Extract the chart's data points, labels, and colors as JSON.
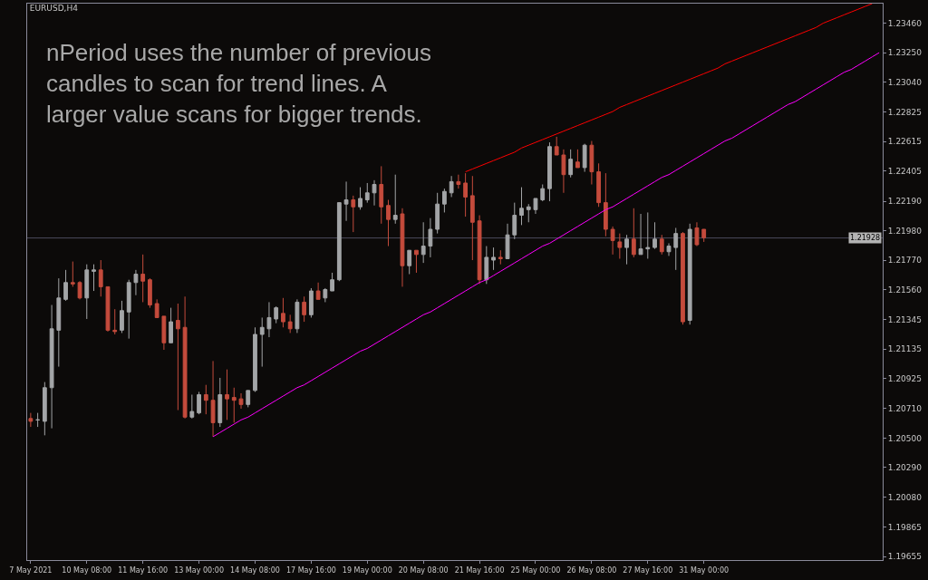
{
  "chart_data": {
    "type": "candlestick",
    "title": "EURUSD,H4",
    "annotations": [
      "nPeriod uses the number of previous\ncandles to scan for trend lines. A\nlarger value scans for bigger trends."
    ],
    "categories": [
      "7 May 2021",
      null,
      null,
      null,
      null,
      null,
      null,
      null,
      "10 May 08:00",
      null,
      null,
      null,
      null,
      null,
      null,
      null,
      "11 May 16:00",
      null,
      null,
      null,
      null,
      null,
      null,
      null,
      "13 May 00:00",
      null,
      null,
      null,
      null,
      null,
      null,
      null,
      "14 May 08:00",
      null,
      null,
      null,
      null,
      null,
      null,
      null,
      "17 May 16:00",
      null,
      null,
      null,
      null,
      null,
      null,
      null,
      "19 May 00:00",
      null,
      null,
      null,
      null,
      null,
      null,
      null,
      "20 May 08:00",
      null,
      null,
      null,
      null,
      null,
      null,
      null,
      "21 May 16:00",
      null,
      null,
      null,
      null,
      null,
      null,
      null,
      "25 May 00:00",
      null,
      null,
      null,
      null,
      null,
      null,
      null,
      "26 May 08:00",
      null,
      null,
      null,
      null,
      null,
      null,
      null,
      "27 May 16:00",
      null,
      null,
      null,
      null,
      null,
      null,
      null,
      "31 May 00:00",
      null,
      null,
      null,
      null,
      null,
      null,
      null,
      null,
      null,
      null,
      null,
      null,
      null,
      null,
      null,
      null,
      null,
      null,
      null,
      null,
      null,
      null,
      null,
      null,
      null
    ],
    "ylim": [
      1.1963,
      1.236
    ],
    "yticks": [
      {
        "value": 1.2346,
        "label": "1.23460"
      },
      {
        "value": 1.2325,
        "label": "1.23250"
      },
      {
        "value": 1.2304,
        "label": "1.23040"
      },
      1.22825,
      1.22615,
      1.22405,
      {
        "value": 1.2219,
        "label": "1.22190"
      },
      {
        "value": 1.2198,
        "label": "1.21980"
      },
      {
        "value": 1.2177,
        "label": "1.21770"
      },
      {
        "value": 1.2156,
        "label": "1.21560"
      },
      1.21345,
      1.21135,
      1.20925,
      {
        "value": 1.2071,
        "label": "1.20710"
      },
      {
        "value": 1.205,
        "label": "1.20500"
      },
      {
        "value": 1.2029,
        "label": "1.20290"
      },
      {
        "value": 1.2008,
        "label": "1.20080"
      },
      1.19865,
      1.19655
    ],
    "series": [
      {
        "colors": [
          "#c44b3c",
          "#a3a5a7",
          "#a3a5a7",
          "#a3a5a7",
          "#a3a5a7",
          "#a3a5a7",
          "#c44b3c",
          "#c44b3c",
          "#a3a5a7",
          "#a3a5a7",
          "#c44b3c",
          "#c44b3c",
          "#c44b3c",
          "#a3a5a7",
          "#a3a5a7",
          "#a3a5a7",
          "#c44b3c",
          "#c44b3c",
          "#c44b3c",
          "#c44b3c",
          "#a3a5a7",
          "#c44b3c",
          "#c44b3c",
          "#a3a5a7",
          "#a3a5a7",
          "#c44b3c",
          "#c44b3c",
          "#a3a5a7",
          "#c44b3c",
          "#c44b3c",
          "#c44b3c",
          "#a3a5a7",
          "#a3a5a7",
          "#a3a5a7",
          "#a3a5a7",
          "#a3a5a7",
          "#c44b3c",
          "#c44b3c",
          "#a3a5a7",
          "#c44b3c",
          "#a3a5a7",
          "#c44b3c",
          "#a3a5a7",
          "#a3a5a7",
          "#a3a5a7",
          "#a3a5a7",
          "#c44b3c",
          "#a3a5a7",
          "#a3a5a7",
          "#a3a5a7",
          "#c44b3c",
          "#c44b3c",
          "#a3a5a7",
          "#c44b3c",
          "#a3a5a7",
          "#c44b3c",
          "#a3a5a7",
          "#a3a5a7",
          "#a3a5a7",
          "#a3a5a7",
          "#a3a5a7",
          "#c44b3c",
          "#c44b3c",
          "#c44b3c",
          "#c44b3c",
          "#a3a5a7",
          "#a3a5a7",
          "#c44b3c",
          "#a3a5a7",
          "#a3a5a7",
          "#a3a5a7",
          "#a3a5a7",
          "#a3a5a7",
          "#a3a5a7",
          "#a3a5a7",
          "#c44b3c",
          "#c44b3c",
          "#a3a5a7",
          "#c44b3c",
          "#a3a5a7",
          "#c44b3c",
          "#c44b3c",
          "#c44b3c",
          "#c44b3c",
          "#c44b3c",
          "#a3a5a7",
          "#c44b3c",
          "#a3a5a7",
          "#a3a5a7",
          "#a3a5a7",
          "#c44b3c",
          "#a3a5a7",
          "#a3a5a7",
          "#c44b3c",
          "#a3a5a7",
          "#c44b3c",
          "#c44b3c",
          null,
          null,
          null,
          null,
          null,
          null,
          null,
          null,
          null,
          null,
          null,
          null,
          null,
          null,
          null,
          null,
          null,
          null,
          null,
          null,
          null,
          null,
          null,
          null,
          null
        ],
        "ohlc": [
          [
            1.2064,
            1.2068,
            1.2058,
            1.2062
          ],
          [
            1.2063,
            1.2068,
            1.2058,
            1.2063
          ],
          [
            1.2062,
            1.209,
            1.2052,
            1.2086
          ],
          [
            1.2086,
            1.2145,
            1.2057,
            1.2128
          ],
          [
            1.2127,
            1.2164,
            1.2101,
            1.215
          ],
          [
            1.2149,
            1.217,
            1.2148,
            1.2161
          ],
          [
            1.2161,
            1.2176,
            1.2158,
            1.216
          ],
          [
            1.2161,
            1.2162,
            1.2149,
            1.215
          ],
          [
            1.215,
            1.2174,
            1.2135,
            1.217
          ],
          [
            1.2169,
            1.2174,
            1.2155,
            1.217
          ],
          [
            1.217,
            1.2177,
            1.2151,
            1.2158
          ],
          [
            1.2158,
            1.2158,
            1.2126,
            1.2127
          ],
          [
            1.2127,
            1.2142,
            1.2124,
            1.2126
          ],
          [
            1.2127,
            1.2148,
            1.2125,
            1.2141
          ],
          [
            1.214,
            1.2163,
            1.2121,
            1.2161
          ],
          [
            1.2161,
            1.217,
            1.2152,
            1.2167
          ],
          [
            1.2167,
            1.2181,
            1.2147,
            1.2162
          ],
          [
            1.2163,
            1.2164,
            1.2143,
            1.2145
          ],
          [
            1.2146,
            1.2149,
            1.2136,
            1.2136
          ],
          [
            1.2137,
            1.2137,
            1.2113,
            1.2118
          ],
          [
            1.2118,
            1.2143,
            1.2118,
            1.2133
          ],
          [
            1.2134,
            1.2146,
            1.207,
            1.2128
          ],
          [
            1.2129,
            1.2151,
            1.2064,
            1.2065
          ],
          [
            1.2065,
            1.2081,
            1.2064,
            1.2069
          ],
          [
            1.2068,
            1.2083,
            1.2067,
            1.2081
          ],
          [
            1.2081,
            1.2088,
            1.2067,
            1.2077
          ],
          [
            1.2077,
            1.2105,
            1.2051,
            1.2061
          ],
          [
            1.2061,
            1.2093,
            1.2058,
            1.2081
          ],
          [
            1.2081,
            1.2099,
            1.2063,
            1.2078
          ],
          [
            1.2079,
            1.2086,
            1.2061,
            1.2077
          ],
          [
            1.2078,
            1.2082,
            1.2071,
            1.2074
          ],
          [
            1.2074,
            1.2084,
            1.2072,
            1.2084
          ],
          [
            1.2084,
            1.2129,
            1.2083,
            1.2124
          ],
          [
            1.2124,
            1.2136,
            1.2101,
            1.2129
          ],
          [
            1.2128,
            1.2147,
            1.2122,
            1.2136
          ],
          [
            1.2135,
            1.2144,
            1.2132,
            1.2143
          ],
          [
            1.2139,
            1.215,
            1.2129,
            1.2133
          ],
          [
            1.2133,
            1.2138,
            1.2125,
            1.2128
          ],
          [
            1.2128,
            1.2149,
            1.2125,
            1.2147
          ],
          [
            1.2147,
            1.2151,
            1.2133,
            1.2138
          ],
          [
            1.2138,
            1.2157,
            1.2136,
            1.2155
          ],
          [
            1.2155,
            1.2161,
            1.2149,
            1.2149
          ],
          [
            1.215,
            1.2157,
            1.2147,
            1.2156
          ],
          [
            1.2155,
            1.2168,
            1.2155,
            1.2163
          ],
          [
            1.2163,
            1.2218,
            1.2162,
            1.2218
          ],
          [
            1.2217,
            1.2233,
            1.2205,
            1.222
          ],
          [
            1.222,
            1.2223,
            1.2197,
            1.2215
          ],
          [
            1.2215,
            1.2229,
            1.2213,
            1.2221
          ],
          [
            1.222,
            1.2232,
            1.2218,
            1.2225
          ],
          [
            1.2225,
            1.2234,
            1.2216,
            1.2231
          ],
          [
            1.2231,
            1.2244,
            1.2203,
            1.2215
          ],
          [
            1.2216,
            1.222,
            1.2187,
            1.2206
          ],
          [
            1.2206,
            1.2238,
            1.2203,
            1.2209
          ],
          [
            1.221,
            1.2214,
            1.2158,
            1.2173
          ],
          [
            1.2173,
            1.2184,
            1.2167,
            1.2184
          ],
          [
            1.2184,
            1.2184,
            1.2168,
            1.2181
          ],
          [
            1.2181,
            1.2204,
            1.2175,
            1.2187
          ],
          [
            1.2187,
            1.2207,
            1.2179,
            1.2199
          ],
          [
            1.2199,
            1.2225,
            1.2196,
            1.2217
          ],
          [
            1.2217,
            1.2228,
            1.2211,
            1.2226
          ],
          [
            1.2225,
            1.2237,
            1.2222,
            1.2233
          ],
          [
            1.2233,
            1.2238,
            1.2228,
            1.2231
          ],
          [
            1.2232,
            1.2239,
            1.2208,
            1.2222
          ],
          [
            1.2223,
            1.2237,
            1.2177,
            1.2204
          ],
          [
            1.2205,
            1.2209,
            1.216,
            1.2163
          ],
          [
            1.2163,
            1.2187,
            1.216,
            1.2179
          ],
          [
            1.2177,
            1.2186,
            1.217,
            1.2179
          ],
          [
            1.2179,
            1.2184,
            1.2174,
            1.2178
          ],
          [
            1.2178,
            1.2203,
            1.2178,
            1.2195
          ],
          [
            1.2195,
            1.2218,
            1.2192,
            1.2209
          ],
          [
            1.2209,
            1.2229,
            1.2202,
            1.2214
          ],
          [
            1.2213,
            1.2217,
            1.2204,
            1.2215
          ],
          [
            1.2213,
            1.2221,
            1.221,
            1.2221
          ],
          [
            1.222,
            1.2231,
            1.2219,
            1.2228
          ],
          [
            1.2228,
            1.2261,
            1.2219,
            1.2258
          ],
          [
            1.2258,
            1.2265,
            1.2252,
            1.2252
          ],
          [
            1.2252,
            1.2256,
            1.2225,
            1.2238
          ],
          [
            1.2238,
            1.2256,
            1.2236,
            1.2249
          ],
          [
            1.2247,
            1.2256,
            1.2243,
            1.2243
          ],
          [
            1.2243,
            1.226,
            1.224,
            1.2259
          ],
          [
            1.2259,
            1.2262,
            1.2231,
            1.224
          ],
          [
            1.224,
            1.2246,
            1.2215,
            1.2218
          ],
          [
            1.2218,
            1.2239,
            1.2194,
            1.2199
          ],
          [
            1.2199,
            1.2201,
            1.2181,
            1.2191
          ],
          [
            1.219,
            1.2196,
            1.2178,
            1.2186
          ],
          [
            1.2186,
            1.2195,
            1.2174,
            1.2192
          ],
          [
            1.2192,
            1.2214,
            1.2179,
            1.2181
          ],
          [
            1.2181,
            1.221,
            1.2181,
            1.2185
          ],
          [
            1.2185,
            1.2211,
            1.2178,
            1.2186
          ],
          [
            1.2186,
            1.2204,
            1.2185,
            1.2192
          ],
          [
            1.2192,
            1.2195,
            1.2181,
            1.2183
          ],
          [
            1.2183,
            1.2189,
            1.218,
            1.2187
          ],
          [
            1.2186,
            1.22,
            1.217,
            1.2196
          ],
          [
            1.2196,
            1.2197,
            1.2131,
            1.2133
          ],
          [
            1.2134,
            1.2203,
            1.2131,
            1.2199
          ],
          [
            1.22,
            1.2204,
            1.2187,
            1.2188
          ],
          [
            1.2199,
            1.2199,
            1.219,
            1.2193
          ],
          null,
          null,
          null,
          null,
          null,
          null,
          null,
          null,
          null,
          null,
          null,
          null,
          null,
          null,
          null,
          null,
          null,
          null,
          null,
          null,
          null,
          null,
          null,
          null,
          null
        ]
      },
      {
        "type": "line",
        "color": "#ff0000",
        "values": [
          null,
          null,
          null,
          null,
          null,
          null,
          null,
          null,
          null,
          null,
          null,
          null,
          null,
          null,
          null,
          null,
          null,
          null,
          null,
          null,
          null,
          null,
          null,
          null,
          null,
          null,
          null,
          null,
          null,
          null,
          null,
          null,
          null,
          null,
          null,
          null,
          null,
          null,
          null,
          null,
          null,
          null,
          null,
          null,
          null,
          null,
          null,
          null,
          null,
          null,
          null,
          null,
          null,
          null,
          null,
          null,
          null,
          null,
          null,
          null,
          null,
          null,
          1.224,
          1.2242,
          1.2244,
          1.2246,
          1.2248,
          1.225,
          1.2252,
          1.2254,
          1.2257,
          1.2259,
          1.2261,
          1.2263,
          1.2265,
          1.2267,
          1.2269,
          1.2271,
          1.2273,
          1.2275,
          1.2277,
          1.2279,
          1.2281,
          1.2283,
          1.2286,
          1.2288,
          1.229,
          1.2292,
          1.2294,
          1.2296,
          1.2298,
          1.23,
          1.2302,
          1.2304,
          1.2306,
          1.2308,
          1.231,
          1.2312,
          1.2314,
          1.2317,
          1.2319,
          1.2321,
          1.2323,
          1.2325,
          1.2327,
          1.2329,
          1.2331,
          1.2333,
          1.2335,
          1.2337,
          1.2339,
          1.2341,
          1.2343,
          1.2346,
          1.2348,
          1.235,
          1.2352,
          1.2354,
          1.2356,
          1.2358,
          1.236,
          null
        ]
      },
      {
        "type": "line",
        "color": "#ff00ff",
        "values": [
          null,
          null,
          null,
          null,
          null,
          null,
          null,
          null,
          null,
          null,
          null,
          null,
          null,
          null,
          null,
          null,
          null,
          null,
          null,
          null,
          null,
          null,
          null,
          null,
          null,
          null,
          1.2051,
          1.2054,
          1.2057,
          1.206,
          1.2063,
          1.2065,
          1.2068,
          1.2071,
          1.2074,
          1.2077,
          1.208,
          1.2083,
          1.2086,
          1.2088,
          1.2091,
          1.2094,
          1.2097,
          1.21,
          1.2103,
          1.2106,
          1.2109,
          1.2112,
          1.2114,
          1.2117,
          1.212,
          1.2123,
          1.2126,
          1.2129,
          1.2132,
          1.2135,
          1.2138,
          1.214,
          1.2143,
          1.2146,
          1.2149,
          1.2152,
          1.2155,
          1.2158,
          1.2161,
          1.2163,
          1.2166,
          1.2169,
          1.2172,
          1.2175,
          1.2178,
          1.2181,
          1.2184,
          1.2187,
          1.2189,
          1.2192,
          1.2195,
          1.2198,
          1.2201,
          1.2204,
          1.2207,
          1.221,
          1.2213,
          1.2215,
          1.2218,
          1.2221,
          1.2224,
          1.2227,
          1.223,
          1.2233,
          1.2236,
          1.2238,
          1.2241,
          1.2244,
          1.2247,
          1.225,
          1.2253,
          1.2256,
          1.2259,
          1.2262,
          1.2264,
          1.2267,
          1.227,
          1.2273,
          1.2276,
          1.2279,
          1.2282,
          1.2285,
          1.2288,
          1.229,
          1.2293,
          1.2296,
          1.2299,
          1.2302,
          1.2305,
          1.2308,
          1.2311,
          1.2313,
          1.2316,
          1.2319,
          1.2322,
          1.2325
        ]
      }
    ],
    "ref_lines": [
      {
        "axis": "y",
        "value": 1.21928,
        "label": "1.21928",
        "color": "#4a4a5c"
      }
    ],
    "grid": false
  }
}
